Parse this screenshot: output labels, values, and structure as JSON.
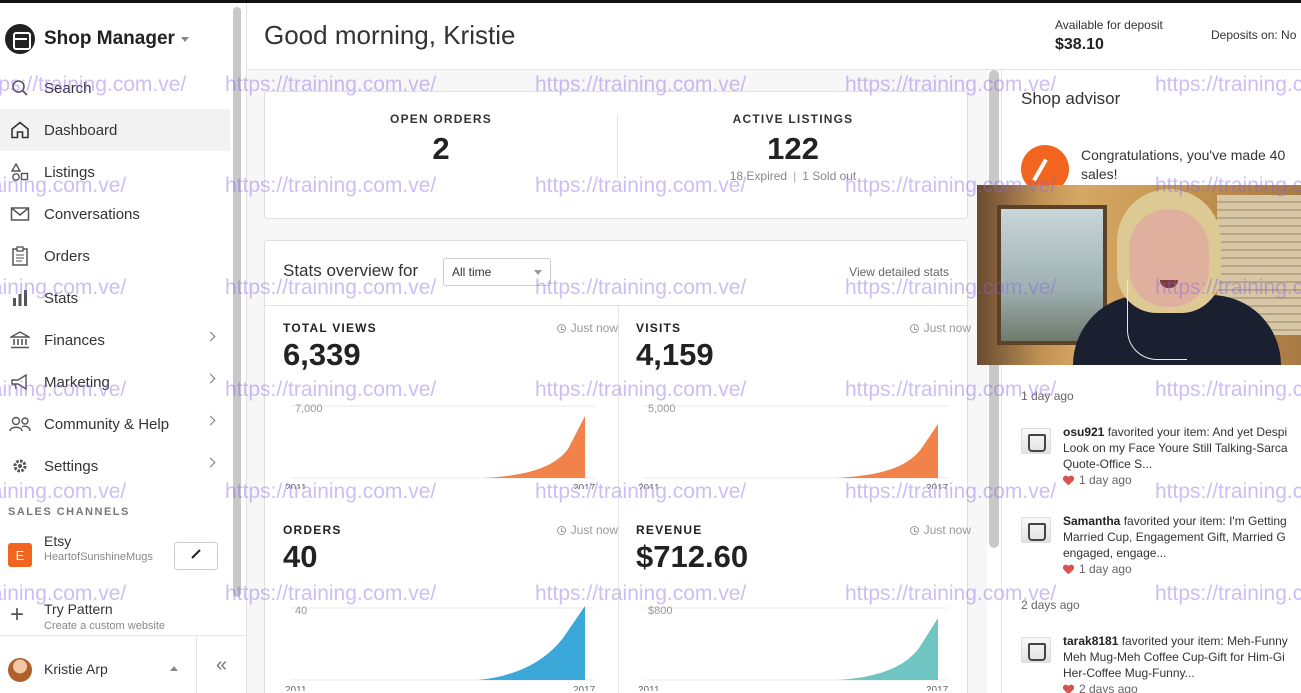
{
  "sidebar": {
    "title": "Shop Manager",
    "items": [
      {
        "label": "Search",
        "icon": "search-icon"
      },
      {
        "label": "Dashboard",
        "icon": "home-icon"
      },
      {
        "label": "Listings",
        "icon": "shapes-icon"
      },
      {
        "label": "Conversations",
        "icon": "mail-icon"
      },
      {
        "label": "Orders",
        "icon": "clipboard-icon"
      },
      {
        "label": "Stats",
        "icon": "bar-chart-icon"
      },
      {
        "label": "Finances",
        "icon": "bank-icon"
      },
      {
        "label": "Marketing",
        "icon": "megaphone-icon"
      },
      {
        "label": "Community & Help",
        "icon": "people-icon"
      },
      {
        "label": "Settings",
        "icon": "gear-icon"
      }
    ],
    "sales_channels_label": "SALES CHANNELS",
    "channel": {
      "badge": "E",
      "name": "Etsy",
      "shop": "HeartofSunshineMugs"
    },
    "pattern": {
      "title": "Try Pattern",
      "subtitle": "Create a custom website"
    },
    "user": {
      "name": "Kristie Arp"
    },
    "collapse_glyph": "«"
  },
  "header": {
    "greeting": "Good morning, Kristie",
    "deposit_label": "Available for deposit",
    "deposit_value": "$38.10",
    "deposits_on": "Deposits on: No"
  },
  "summary": {
    "open_orders_label": "OPEN ORDERS",
    "open_orders_value": "2",
    "active_listings_label": "ACTIVE LISTINGS",
    "active_listings_value": "122",
    "expired": "18 Expired",
    "sold_out": "1 Sold out"
  },
  "stats": {
    "title": "Stats overview for",
    "range": "All time",
    "view_detailed": "View detailed stats",
    "blocks": [
      {
        "label": "TOTAL VIEWS",
        "time": "Just now",
        "value": "6,339",
        "ymax": "7,000",
        "x_start": "2011",
        "x_end": "2017"
      },
      {
        "label": "VISITS",
        "time": "Just now",
        "value": "4,159",
        "ymax": "5,000",
        "x_start": "2011",
        "x_end": "2017"
      },
      {
        "label": "ORDERS",
        "time": "Just now",
        "value": "40",
        "ymax": "40",
        "x_start": "2011",
        "x_end": "2017"
      },
      {
        "label": "REVENUE",
        "time": "Just now",
        "value": "$712.60",
        "ymax": "$800",
        "x_start": "2011",
        "x_end": "2017"
      }
    ]
  },
  "advisor": {
    "title": "Shop advisor",
    "congrats": "Congratulations, you've made 40 sales!",
    "time1": "1 day ago",
    "activities": [
      {
        "user": "osu921",
        "text": " favorited your item: And yet Despi",
        "line2": "Look on my Face Youre Still Talking-Sarca",
        "line3": "Quote-Office S...",
        "when": "1 day ago"
      },
      {
        "user": "Samantha",
        "text": " favorited your item: I'm Getting",
        "line2": "Married Cup, Engagement Gift, Married G",
        "line3": "engaged, engage...",
        "when": "1 day ago"
      },
      {
        "user": "tarak8181",
        "text": " favorited your item: Meh-Funny",
        "line2": "Meh Mug-Meh Coffee Cup-Gift for Him-Gi",
        "line3": "Her-Coffee Mug-Funny...",
        "when": "2 days ago"
      }
    ],
    "time2": "2 days ago"
  },
  "watermark": "https://training.com.ve/",
  "colors": {
    "accent": "#f16521",
    "views": "#f0824a",
    "visits": "#f0824a",
    "orders": "#3aa8d8",
    "revenue": "#6fc5c1"
  }
}
